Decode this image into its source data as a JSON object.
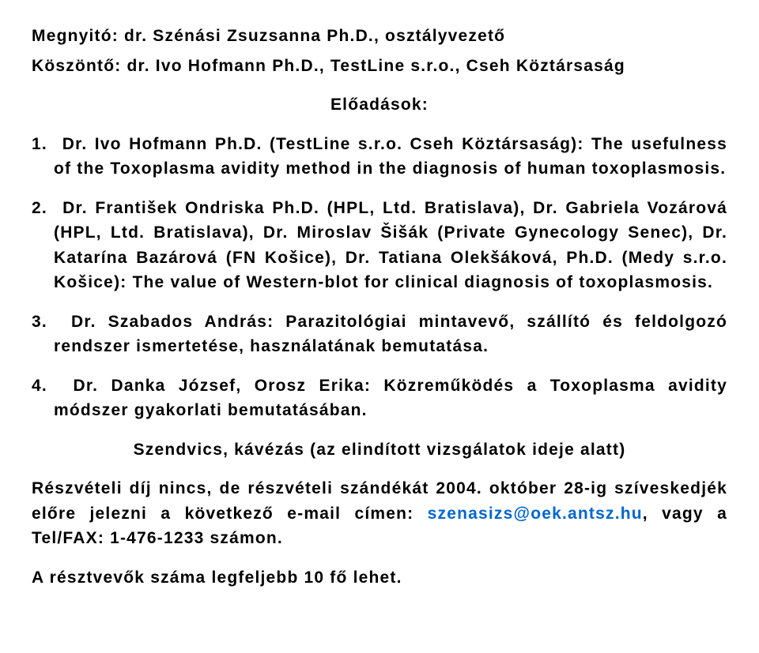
{
  "header": {
    "opening": "Megnyitó: dr. Szénási Zsuzsanna Ph.D., osztályvezető",
    "greeting": "Köszöntő: dr. Ivo Hofmann Ph.D., TestLine s.r.o., Cseh Köztársaság",
    "sectionTitle": "Előadások:"
  },
  "items": [
    "Dr. Ivo Hofmann Ph.D. (TestLine s.r.o. Cseh Köztársaság): The usefulness of the Toxoplasma avidity method in the diagnosis of human toxoplasmosis.",
    "Dr. František Ondriska Ph.D. (HPL, Ltd. Bratislava), Dr. Gabriela Vozárová (HPL, Ltd. Bratislava), Dr. Miroslav Šišák (Private Gynecology Senec), Dr. Katarína Bazárová (FN Košice), Dr. Tatiana Olekšáková, Ph.D. (Medy s.r.o. Košice): The value of Western-blot for clinical diagnosis of toxoplasmosis.",
    "Dr. Szabados András: Parazitológiai mintavevő, szállító és feldolgozó rendszer ismertetése, használatának bemutatása.",
    "Dr. Danka József, Orosz Erika: Közreműködés a Toxoplasma avidity módszer gyakorlati bemutatásában."
  ],
  "footer": {
    "sandwich": "Szendvics, kávézás (az elindított vizsgálatok ideje alatt)",
    "feePre": "Részvételi díj nincs, de részvételi szándékát 2004. október 28-ig szíveskedjék előre jelezni a következő e-mail címen: ",
    "email": "szenasizs@oek.antsz.hu",
    "feePost": ", vagy a Tel/FAX: 1-476-1233 számon.",
    "limit": "A résztvevők száma legfeljebb 10 fő lehet."
  }
}
